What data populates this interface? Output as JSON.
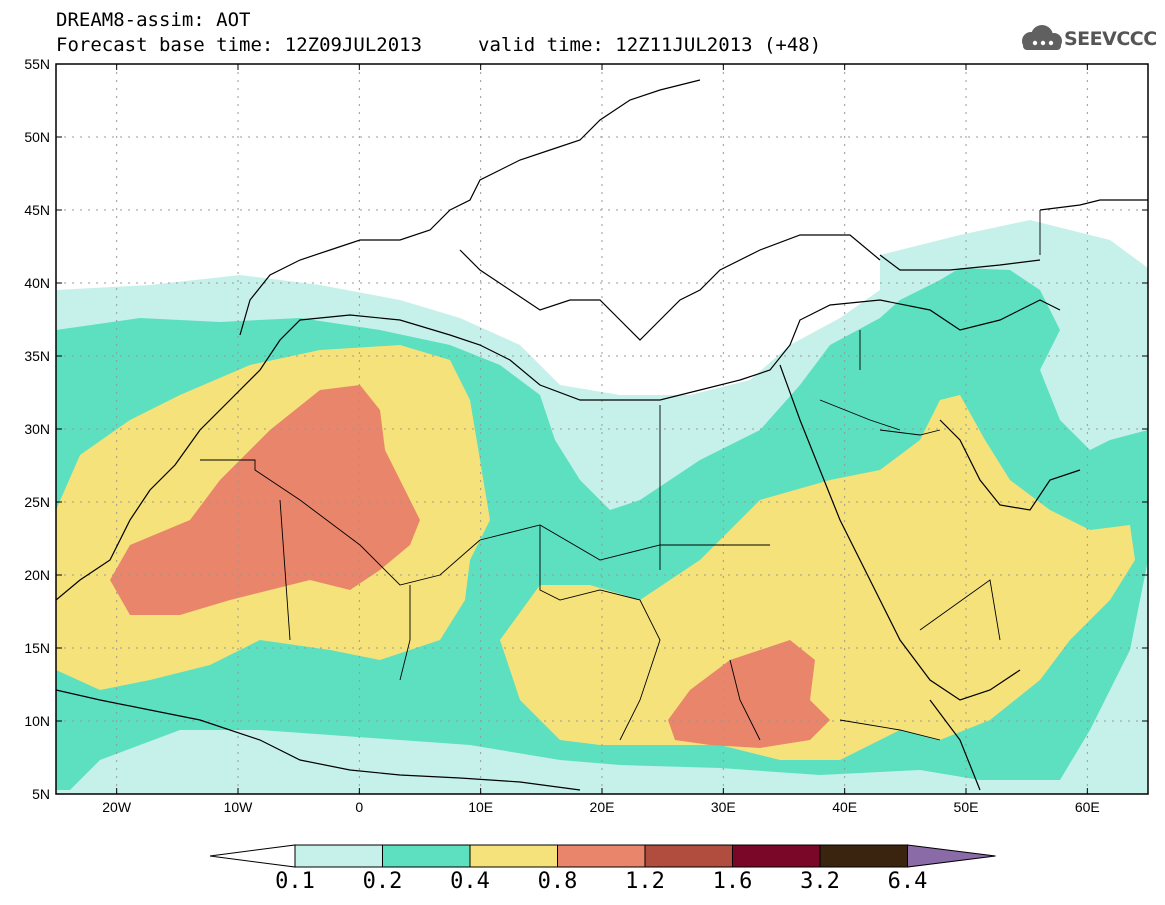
{
  "header": {
    "title": "DREAM8-assim: AOT",
    "base_time": "Forecast base time: 12Z09JUL2013",
    "valid_time": "valid time: 12Z11JUL2013 (+48)"
  },
  "logo": {
    "text": "SEEVCCC",
    "icon": "cloud-logo-icon"
  },
  "map": {
    "lat_ticks": [
      "55N",
      "50N",
      "45N",
      "40N",
      "35N",
      "30N",
      "25N",
      "20N",
      "15N",
      "10N",
      "5N"
    ],
    "lat_values": [
      55,
      50,
      45,
      40,
      35,
      30,
      25,
      20,
      15,
      10,
      5
    ],
    "lon_ticks": [
      "20W",
      "10W",
      "0",
      "10E",
      "20E",
      "30E",
      "40E",
      "50E",
      "60E"
    ],
    "lon_values": [
      -20,
      -10,
      0,
      10,
      20,
      30,
      40,
      50,
      60
    ],
    "lon_range": [
      -25,
      65
    ],
    "lat_range": [
      5,
      55
    ],
    "grid": true,
    "land_fill": "white",
    "borders_color": "#000000"
  },
  "colorbar": {
    "labels": [
      "0.1",
      "0.2",
      "0.4",
      "0.8",
      "1.2",
      "1.6",
      "3.2",
      "6.4"
    ],
    "colors": [
      "#ffffff",
      "#c6f1ea",
      "#5ce0c0",
      "#f5e27a",
      "#e9856a",
      "#b04d3f",
      "#7a0628",
      "#3a2410",
      "#8b6aa8"
    ]
  }
}
